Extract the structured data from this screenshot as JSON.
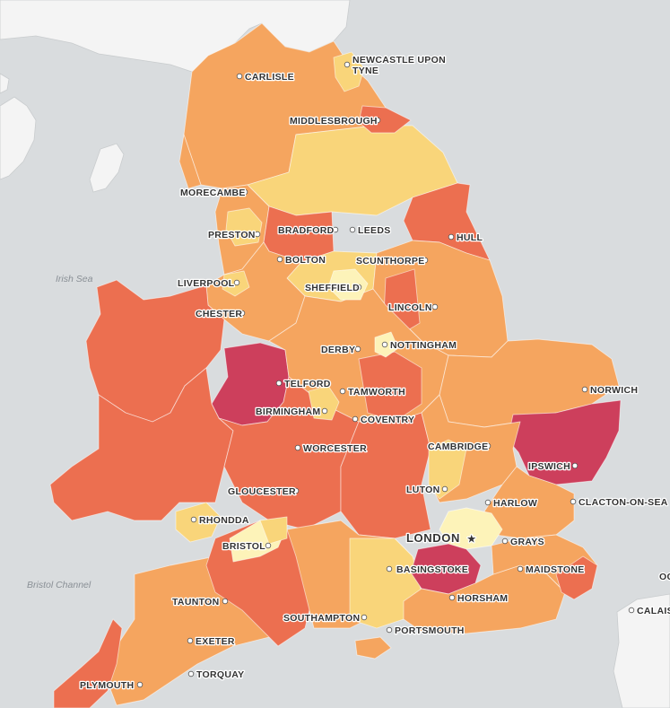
{
  "colors": {
    "sea": "#d9dcde",
    "foreign_land": "#f4f4f4",
    "very_low": "#fdf3b9",
    "low": "#f9d57a",
    "medium": "#f5a55f",
    "high": "#ec6f50",
    "very_high": "#cd3f5c"
  },
  "water_labels": {
    "irish_sea": "Irish Sea",
    "bristol_channel": "Bristol Channel"
  },
  "cities": {
    "newcastle_line1": "NEWCASTLE UPON",
    "newcastle_line2": "TYNE",
    "carlisle": "CARLISLE",
    "middlesbrough": "MIDDLESBROUGH",
    "morecambe": "MORECAMBE",
    "preston": "PRESTON",
    "bradford": "BRADFORD",
    "leeds": "LEEDS",
    "hull": "HULL",
    "bolton": "BOLTON",
    "scunthorpe": "SCUNTHORPE",
    "liverpool": "LIVERPOOL",
    "sheffield": "SHEFFIELD",
    "chester": "CHESTER",
    "lincoln": "LINCOLN",
    "derby": "DERBY",
    "nottingham": "NOTTINGHAM",
    "telford": "TELFORD",
    "tamworth": "TAMWORTH",
    "norwich": "NORWICH",
    "birmingham": "BIRMINGHAM",
    "coventry": "COVENTRY",
    "worcester": "WORCESTER",
    "cambridge": "CAMBRIDGE",
    "ipswich": "IPSWICH",
    "gloucester": "GLOUCESTER",
    "luton": "LUTON",
    "harlow": "HARLOW",
    "clacton": "CLACTON-ON-SEA",
    "rhondda": "RHONDDA",
    "london": "LONDON",
    "grays": "GRAYS",
    "bristol": "BRISTOL",
    "basingstoke": "BASINGSTOKE",
    "maidstone": "MAIDSTONE",
    "taunton": "TAUNTON",
    "horsham": "HORSHAM",
    "southampton": "SOUTHAMPTON",
    "portsmouth": "PORTSMOUTH",
    "exeter": "EXETER",
    "torquay": "TORQUAY",
    "plymouth": "PLYMOUTH",
    "calais": "CALAIS",
    "edge_fragment": "OC"
  }
}
